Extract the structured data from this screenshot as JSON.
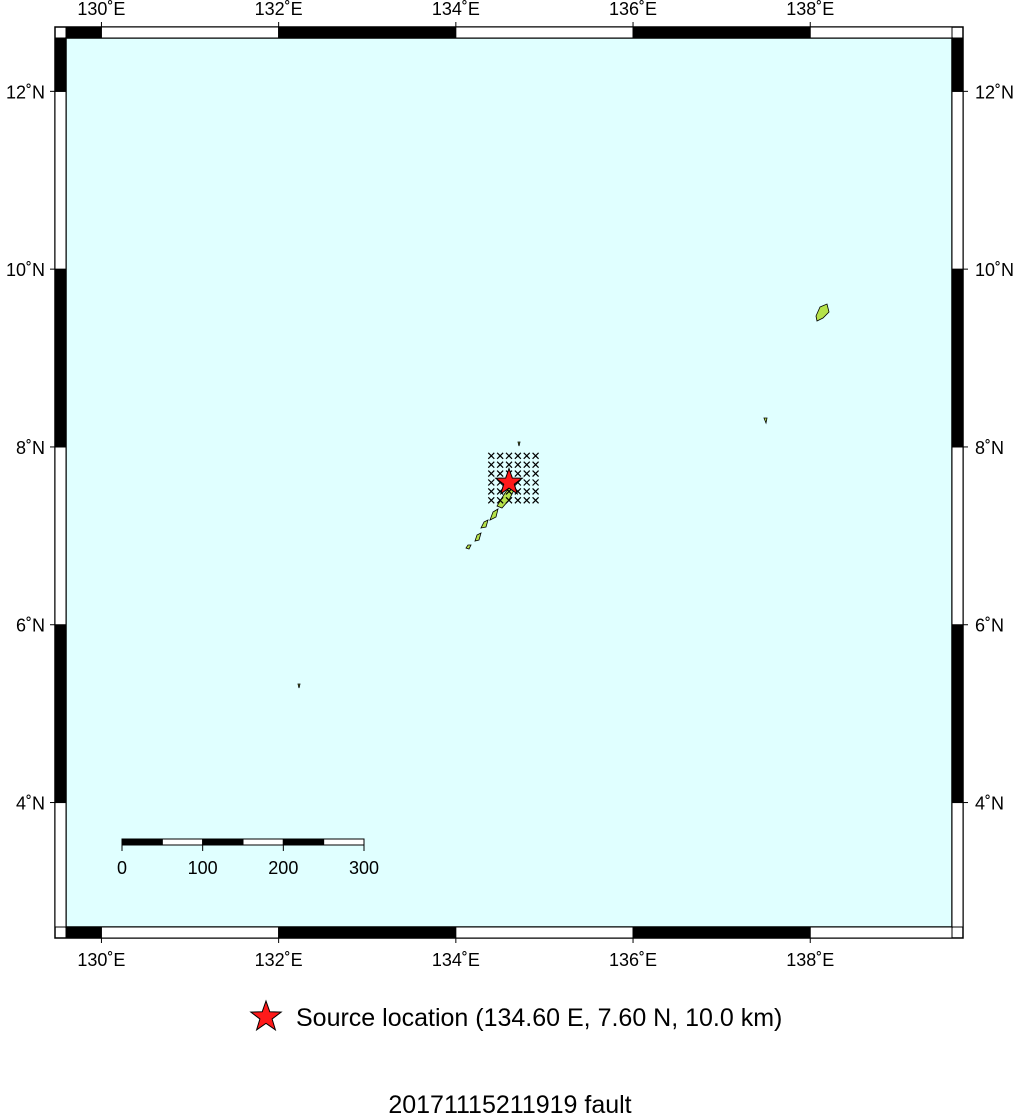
{
  "map": {
    "lon_range": [
      129.6,
      139.6
    ],
    "lat_range": [
      2.6,
      12.6
    ],
    "lon_ticks": [
      {
        "value": 130,
        "label": "130˚E"
      },
      {
        "value": 132,
        "label": "132˚E"
      },
      {
        "value": 134,
        "label": "134˚E"
      },
      {
        "value": 136,
        "label": "136˚E"
      },
      {
        "value": 138,
        "label": "138˚E"
      }
    ],
    "lat_ticks": [
      {
        "value": 4,
        "label": "4˚N"
      },
      {
        "value": 6,
        "label": "6˚N"
      },
      {
        "value": 8,
        "label": "8˚N"
      },
      {
        "value": 10,
        "label": "10˚N"
      },
      {
        "value": 12,
        "label": "12˚N"
      }
    ],
    "scale_bar_km": [
      0,
      100,
      200,
      300
    ],
    "fault_grid": {
      "lon": [
        134.4,
        134.5,
        134.6,
        134.7,
        134.8,
        134.9
      ],
      "lat": [
        7.9,
        7.8,
        7.7,
        7.6,
        7.5,
        7.4
      ]
    },
    "source": {
      "lon": 134.6,
      "lat": 7.6
    },
    "legend": "Source location (134.60 E, 7.60 N, 10.0 km)",
    "title": "20171115211919 fault"
  }
}
